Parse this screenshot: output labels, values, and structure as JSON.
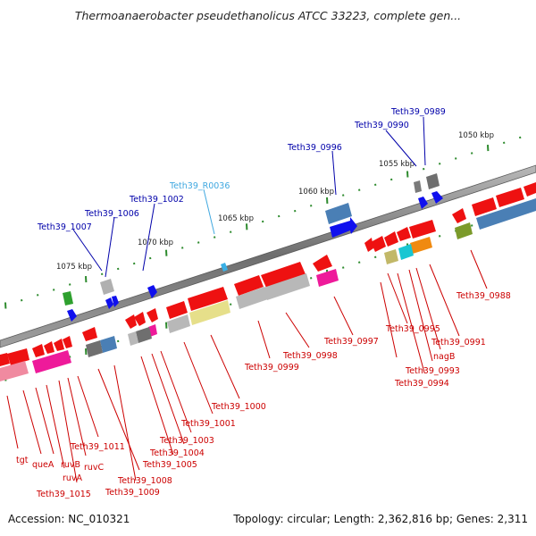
{
  "title": "Thermoanaerobacter pseudethanolicus ATCC 33223, complete gen...",
  "footer": {
    "accession": "Accession: NC_010321",
    "summary": "Topology: circular; Length: 2,362,816 bp; Genes: 2,311"
  },
  "colors": {
    "backbone": "#7a7a7a",
    "tick": "#2e8b2e",
    "gene_red": "#ee1111",
    "gene_blue": "#1010ee",
    "gene_magenta": "#ee1a9a",
    "gene_gray": "#b0b0b0",
    "gene_steel": "#4a7fb5",
    "gene_khaki": "#e6df8a",
    "gene_olive": "#7b9a2a",
    "gene_cyan": "#19c6d2",
    "gene_orange": "#f08a10",
    "gene_green": "#2ea02e",
    "trna_cyan": "#3ab0e6",
    "label_blue": "#0000aa",
    "label_red": "#cc0000",
    "label_trna": "#40a8e0"
  },
  "kbp_labels": [
    "1050 kbp",
    "1055 kbp",
    "1060 kbp",
    "1065 kbp",
    "1070 kbp",
    "1075 kbp"
  ],
  "upper_labels": [
    "Teth39_0989",
    "Teth39_0990",
    "Teth39_0996",
    "Teth39_R0036",
    "Teth39_1002",
    "Teth39_1006",
    "Teth39_1007"
  ],
  "lower_labels": [
    "Teth39_0988",
    "Teth39_0991",
    "nagB",
    "Teth39_0993",
    "Teth39_0994",
    "Teth39_0995",
    "Teth39_0997",
    "Teth39_0998",
    "Teth39_0999",
    "Teth39_1000",
    "Teth39_1001",
    "Teth39_1003",
    "Teth39_1004",
    "Teth39_1005",
    "Teth39_1008",
    "Teth39_1009",
    "Teth39_1011",
    "Teth39_1015",
    "ruvA",
    "ruvC",
    "ruvB",
    "queA",
    "tgt"
  ]
}
